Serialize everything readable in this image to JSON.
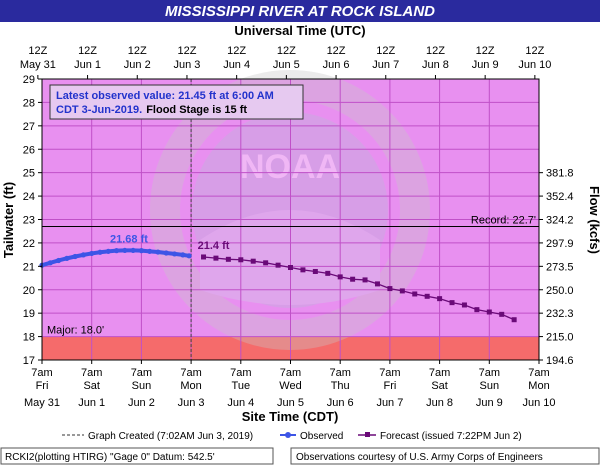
{
  "colors": {
    "title_bg": "#2a2a9e",
    "title_text": "#ffffff",
    "plot_bg": "#e890f0",
    "major_band": "#f56b6b",
    "observed": "#3d55e6",
    "forecast": "#6a0a78",
    "info_text": "#2233cc",
    "record_line": "#000000"
  },
  "header": {
    "title": "MISSISSIPPI RIVER AT ROCK ISLAND",
    "top_axis_title": "Universal Time (UTC)"
  },
  "info_box": {
    "line1": "Latest observed value: 21.45 ft at 6:00 AM",
    "line2_a": "CDT 3-Jun-2019.",
    "line2_b": "Flood Stage is 15 ft"
  },
  "chart_data": {
    "type": "line",
    "xlabel": "Site Time (CDT)",
    "ylabel": "Tailwater (ft)",
    "y2label": "Flow (kcfs)",
    "ylim": [
      17,
      29
    ],
    "yticks": [
      17,
      18,
      19,
      20,
      21,
      22,
      23,
      24,
      25,
      26,
      27,
      28,
      29
    ],
    "xlim": [
      0,
      240
    ],
    "bottom_ticks": [
      {
        "t": 0,
        "line1": "7am",
        "line2": "Fri"
      },
      {
        "t": 24,
        "line1": "7am",
        "line2": "Sat"
      },
      {
        "t": 48,
        "line1": "7am",
        "line2": "Sun"
      },
      {
        "t": 72,
        "line1": "7am",
        "line2": "Mon"
      },
      {
        "t": 96,
        "line1": "7am",
        "line2": "Tue"
      },
      {
        "t": 120,
        "line1": "7am",
        "line2": "Wed"
      },
      {
        "t": 144,
        "line1": "7am",
        "line2": "Thu"
      },
      {
        "t": 168,
        "line1": "7am",
        "line2": "Fri"
      },
      {
        "t": 192,
        "line1": "7am",
        "line2": "Sat"
      },
      {
        "t": 216,
        "line1": "7am",
        "line2": "Sun"
      },
      {
        "t": 240,
        "line1": "7am",
        "line2": "Mon"
      }
    ],
    "bottom_dates": [
      {
        "t": 0,
        "label": "May 31"
      },
      {
        "t": 24,
        "label": "Jun 1"
      },
      {
        "t": 48,
        "label": "Jun 2"
      },
      {
        "t": 72,
        "label": "Jun 3"
      },
      {
        "t": 96,
        "label": "Jun 4"
      },
      {
        "t": 120,
        "label": "Jun 5"
      },
      {
        "t": 144,
        "label": "Jun 6"
      },
      {
        "t": 168,
        "label": "Jun 7"
      },
      {
        "t": 192,
        "label": "Jun 8"
      },
      {
        "t": 216,
        "label": "Jun 9"
      },
      {
        "t": 240,
        "label": "Jun 10"
      }
    ],
    "top_ticks": [
      {
        "t": -2,
        "line1": "12Z",
        "line2": "May 31"
      },
      {
        "t": 22,
        "line1": "12Z",
        "line2": "Jun 1"
      },
      {
        "t": 46,
        "line1": "12Z",
        "line2": "Jun 2"
      },
      {
        "t": 70,
        "line1": "12Z",
        "line2": "Jun 3"
      },
      {
        "t": 94,
        "line1": "12Z",
        "line2": "Jun 4"
      },
      {
        "t": 118,
        "line1": "12Z",
        "line2": "Jun 5"
      },
      {
        "t": 142,
        "line1": "12Z",
        "line2": "Jun 6"
      },
      {
        "t": 166,
        "line1": "12Z",
        "line2": "Jun 7"
      },
      {
        "t": 190,
        "line1": "12Z",
        "line2": "Jun 8"
      },
      {
        "t": 214,
        "line1": "12Z",
        "line2": "Jun 9"
      },
      {
        "t": 238,
        "line1": "12Z",
        "line2": "Jun 10"
      }
    ],
    "flow_ticks": [
      {
        "stage": 17,
        "label": "194.6"
      },
      {
        "stage": 18,
        "label": "215.0"
      },
      {
        "stage": 19,
        "label": "232.3"
      },
      {
        "stage": 20,
        "label": "250.0"
      },
      {
        "stage": 21,
        "label": "273.5"
      },
      {
        "stage": 22,
        "label": "297.9"
      },
      {
        "stage": 23,
        "label": "324.2"
      },
      {
        "stage": 24,
        "label": "352.4"
      },
      {
        "stage": 25,
        "label": "381.8"
      }
    ],
    "record": {
      "value": 22.7,
      "label": "Record: 22.7'"
    },
    "major": {
      "value": 18.0,
      "label": "Major: 18.0'"
    },
    "graph_created_t": 72,
    "observed": {
      "peak_label": "21.68 ft",
      "peak_t": 42,
      "peak_value": 21.68,
      "t": [
        0,
        4,
        8,
        12,
        16,
        20,
        24,
        28,
        32,
        36,
        40,
        44,
        48,
        52,
        56,
        60,
        64,
        68,
        71
      ],
      "values": [
        21.05,
        21.15,
        21.25,
        21.34,
        21.42,
        21.49,
        21.55,
        21.6,
        21.64,
        21.67,
        21.68,
        21.68,
        21.67,
        21.64,
        21.61,
        21.57,
        21.53,
        21.49,
        21.45
      ]
    },
    "forecast": {
      "first_label": "21.4 ft",
      "t": [
        78,
        84,
        90,
        96,
        102,
        108,
        114,
        120,
        126,
        132,
        138,
        144,
        150,
        156,
        162,
        168,
        174,
        180,
        186,
        192,
        198,
        204,
        210,
        216,
        222,
        228
      ],
      "values": [
        21.4,
        21.35,
        21.3,
        21.28,
        21.22,
        21.15,
        21.05,
        20.95,
        20.85,
        20.78,
        20.7,
        20.55,
        20.45,
        20.42,
        20.25,
        20.05,
        19.95,
        19.82,
        19.72,
        19.62,
        19.45,
        19.35,
        19.15,
        19.05,
        18.95,
        18.72
      ]
    }
  },
  "legend": {
    "created": "Graph Created (7:02AM Jun 3, 2019)",
    "observed": "Observed",
    "forecast": "Forecast (issued 7:22PM Jun 2)"
  },
  "footer": {
    "left": "RCKI2(plotting HTIRG) \"Gage 0\" Datum: 542.5'",
    "right": "Observations courtesy of U.S. Army Corps of Engineers"
  }
}
